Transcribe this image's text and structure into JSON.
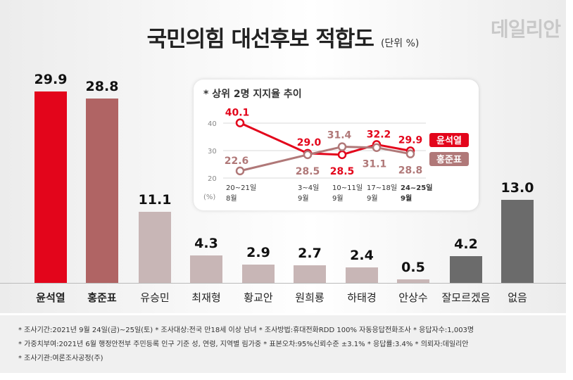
{
  "title": "국민의힘 대선후보 적합도",
  "unit": "(단위 %)",
  "brand": "데일리안",
  "chart_data": [
    {
      "type": "bar",
      "categories": [
        "윤석열",
        "홍준표",
        "유승민",
        "최재형",
        "황교안",
        "원희룡",
        "하태경",
        "안상수",
        "잘모르겠음",
        "없음"
      ],
      "values": [
        29.9,
        28.8,
        11.1,
        4.3,
        2.9,
        2.7,
        2.4,
        0.5,
        4.2,
        13.0
      ],
      "value_labels": [
        "29.9",
        "28.8",
        "11.1",
        "4.3",
        "2.9",
        "2.7",
        "2.4",
        "0.5",
        "4.2",
        "13.0"
      ],
      "colors": [
        "#e3051b",
        "#b06464",
        "#c8b6b6",
        "#c8b6b6",
        "#c8b6b6",
        "#c8b6b6",
        "#c8b6b6",
        "#c8b6b6",
        "#6b6b6b",
        "#6b6b6b"
      ],
      "bold_categories": [
        "윤석열",
        "홍준표"
      ],
      "ylim": [
        0,
        32
      ]
    },
    {
      "type": "line",
      "title": "* 상위 2명 지지율 추이",
      "x": [
        "20~21일 8월",
        "3~4일 9월",
        "10~11일 9월",
        "17~18일 9월",
        "24~25일 9월"
      ],
      "x_top": [
        "20~21일",
        "3~4일",
        "10~11일",
        "17~18일",
        "24~25일"
      ],
      "x_bottom": [
        "8월",
        "9월",
        "9월",
        "9월",
        "9월"
      ],
      "unit_label": "(%)",
      "y_ticks": [
        "40",
        "30",
        "20"
      ],
      "ylim": [
        20,
        40
      ],
      "series": [
        {
          "name": "윤석열",
          "values": [
            40.1,
            29.0,
            28.5,
            32.2,
            29.9
          ],
          "labels": [
            "40.1",
            "29.0",
            "28.5",
            "32.2",
            "29.9"
          ],
          "color": "#e3051b"
        },
        {
          "name": "홍준표",
          "values": [
            22.6,
            28.5,
            31.4,
            31.1,
            28.8
          ],
          "labels": [
            "22.6",
            "28.5",
            "31.4",
            "31.1",
            "28.8"
          ],
          "color": "#b07878"
        }
      ]
    }
  ],
  "notes": [
    "* 조사기간:2021년 9월 24일(금)~25일(토)  * 조사대상:전국 만18세 이상 남녀  * 조사방법:휴대전화RDD 100% 자동응답전화조사  * 응답자수:1,003명",
    "* 가중치부여:2021년 6월 행정안전부 주민등록 인구 기준 성, 연령, 지역별 림가중  * 표본오차:95%신뢰수준 ±3.1%  * 응답률:3.4%  * 의뢰자:데일리안",
    "* 조사기관:여론조사공정(주)"
  ]
}
